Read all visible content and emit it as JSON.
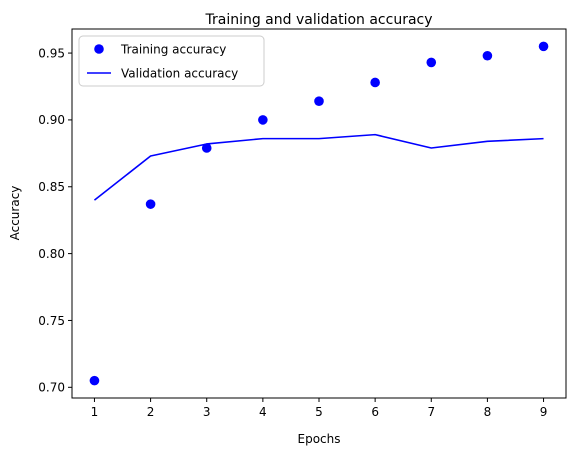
{
  "chart_data": {
    "type": "line",
    "title": "Training and validation accuracy",
    "xlabel": "Epochs",
    "ylabel": "Accuracy",
    "x": [
      1,
      2,
      3,
      4,
      5,
      6,
      7,
      8,
      9
    ],
    "xlim": [
      0.6,
      9.4
    ],
    "ylim": [
      0.692,
      0.968
    ],
    "xticks": [
      "1",
      "2",
      "3",
      "4",
      "5",
      "6",
      "7",
      "8",
      "9"
    ],
    "yticks": [
      "0.70",
      "0.75",
      "0.80",
      "0.85",
      "0.90",
      "0.95"
    ],
    "ytick_values": [
      0.7,
      0.75,
      0.8,
      0.85,
      0.9,
      0.95
    ],
    "legend_position": "top-left",
    "grid": false,
    "series": [
      {
        "name": "Training accuracy",
        "style": "points",
        "color": "#0000ff",
        "values": [
          0.705,
          0.837,
          0.879,
          0.9,
          0.914,
          0.928,
          0.943,
          0.948,
          0.955
        ]
      },
      {
        "name": "Validation accuracy",
        "style": "line",
        "color": "#0000ff",
        "values": [
          0.84,
          0.873,
          0.882,
          0.886,
          0.886,
          0.889,
          0.879,
          0.884,
          0.886
        ]
      }
    ]
  }
}
